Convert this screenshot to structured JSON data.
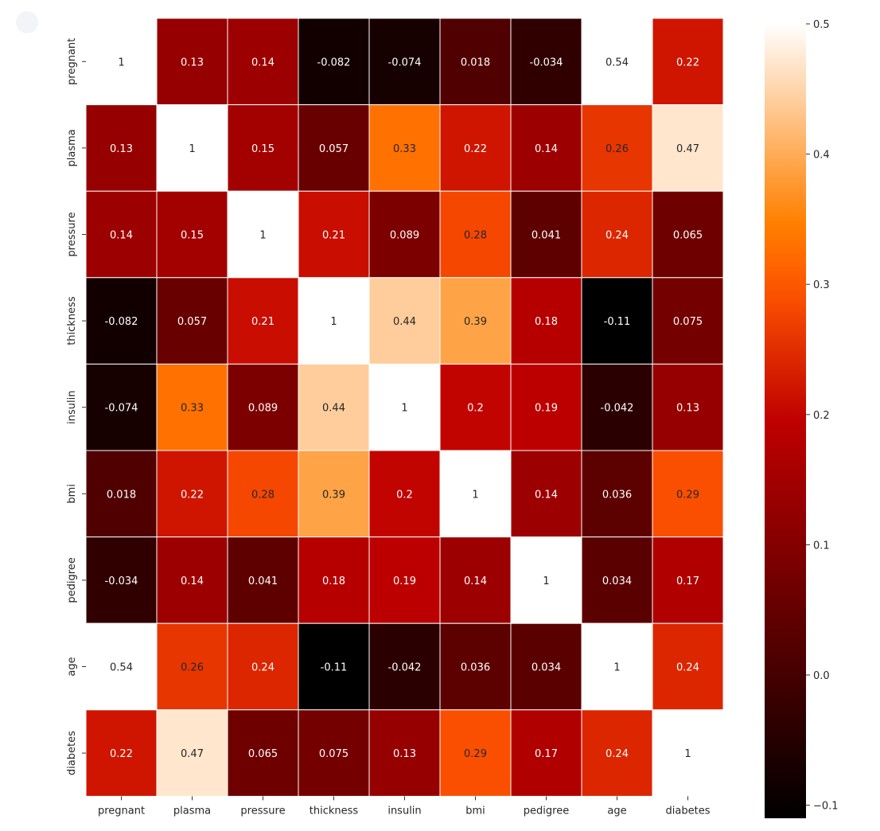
{
  "chart_data": {
    "type": "heatmap",
    "title": "",
    "xlabel": "",
    "ylabel": "",
    "x_categories": [
      "pregnant",
      "plasma",
      "pressure",
      "thickness",
      "insulin",
      "bmi",
      "pedigree",
      "age",
      "diabetes"
    ],
    "y_categories": [
      "pregnant",
      "plasma",
      "pressure",
      "thickness",
      "insulin",
      "bmi",
      "pedigree",
      "age",
      "diabetes"
    ],
    "values": [
      [
        1,
        0.13,
        0.14,
        -0.082,
        -0.074,
        0.018,
        -0.034,
        0.54,
        0.22
      ],
      [
        0.13,
        1,
        0.15,
        0.057,
        0.33,
        0.22,
        0.14,
        0.26,
        0.47
      ],
      [
        0.14,
        0.15,
        1,
        0.21,
        0.089,
        0.28,
        0.041,
        0.24,
        0.065
      ],
      [
        -0.082,
        0.057,
        0.21,
        1,
        0.44,
        0.39,
        0.18,
        -0.11,
        0.075
      ],
      [
        -0.074,
        0.33,
        0.089,
        0.44,
        1,
        0.2,
        0.19,
        -0.042,
        0.13
      ],
      [
        0.018,
        0.22,
        0.28,
        0.39,
        0.2,
        1,
        0.14,
        0.036,
        0.29
      ],
      [
        -0.034,
        0.14,
        0.041,
        0.18,
        0.19,
        0.14,
        1,
        0.034,
        0.17
      ],
      [
        0.54,
        0.26,
        0.24,
        -0.11,
        -0.042,
        0.036,
        0.034,
        1,
        0.24
      ],
      [
        0.22,
        0.47,
        0.065,
        0.075,
        0.13,
        0.29,
        0.17,
        0.24,
        1
      ]
    ],
    "colormap": "gist_heat",
    "vmin": -0.11,
    "vmax": 0.5,
    "annotated": true,
    "cell_border_color": "#ffffff",
    "colorbar": {
      "position": "right",
      "ticks": [
        -0.1,
        0.0,
        0.1,
        0.2,
        0.3,
        0.4,
        0.5
      ],
      "tick_labels": [
        "−0.1",
        "0.0",
        "0.1",
        "0.2",
        "0.3",
        "0.4",
        "0.5"
      ]
    }
  }
}
